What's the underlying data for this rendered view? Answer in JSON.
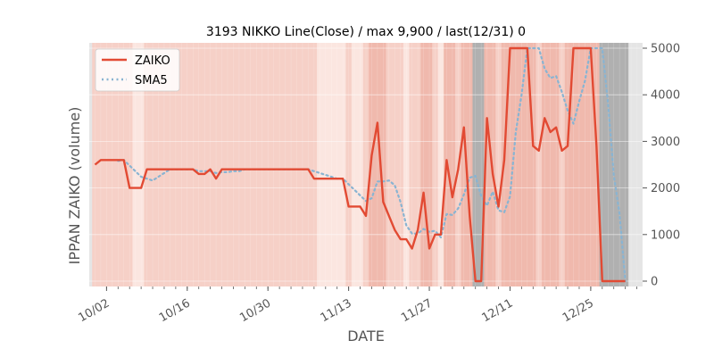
{
  "chart_data": {
    "type": "line",
    "title": "3193 NIKKO Line(Close) / max 9,900 / last(12/31) 0",
    "xlabel": "DATE",
    "ylabel": "IPPAN ZAIKO (volume)",
    "ylim": [
      0,
      5000
    ],
    "x_range": [
      "2023-09-29",
      "2024-01-03"
    ],
    "yticks": [
      0,
      1000,
      2000,
      3000,
      4000,
      5000
    ],
    "ytick_labels": [
      "0",
      "1000",
      "2000",
      "3000",
      "4000",
      "5000"
    ],
    "y_axis_side": "right",
    "xticks": [
      {
        "date": "2023-10-02",
        "label": "10/02"
      },
      {
        "date": "2023-10-16",
        "label": "10/16"
      },
      {
        "date": "2023-10-30",
        "label": "10/30"
      },
      {
        "date": "2023-11-13",
        "label": "11/13"
      },
      {
        "date": "2023-11-27",
        "label": "11/27"
      },
      {
        "date": "2023-12-11",
        "label": "12/11"
      },
      {
        "date": "2023-12-25",
        "label": "12/25"
      }
    ],
    "grid": true,
    "legend_position": "top-left",
    "colors": {
      "zaiko": "#e24a33",
      "sma5": "#89b4d2",
      "background": "#e5e5e5",
      "grid": "#ffffff",
      "shade_light": "#fbe6e0",
      "shade_medium": "#f6d0c7",
      "shade_strong": "#f0b9ad",
      "shade_gray": "#b0b0b0"
    },
    "series": [
      {
        "name": "ZAIKO",
        "style": "solid",
        "x": [
          "2023-09-30",
          "2023-10-01",
          "2023-10-02",
          "2023-10-03",
          "2023-10-04",
          "2023-10-05",
          "2023-10-06",
          "2023-10-07",
          "2023-10-08",
          "2023-10-09",
          "2023-10-10",
          "2023-10-11",
          "2023-10-12",
          "2023-10-13",
          "2023-10-14",
          "2023-10-15",
          "2023-10-16",
          "2023-10-17",
          "2023-10-18",
          "2023-10-19",
          "2023-10-20",
          "2023-10-21",
          "2023-10-22",
          "2023-10-23",
          "2023-10-24",
          "2023-10-25",
          "2023-10-26",
          "2023-10-27",
          "2023-10-28",
          "2023-10-29",
          "2023-10-30",
          "2023-10-31",
          "2023-11-01",
          "2023-11-02",
          "2023-11-03",
          "2023-11-04",
          "2023-11-05",
          "2023-11-06",
          "2023-11-07",
          "2023-11-08",
          "2023-11-09",
          "2023-11-10",
          "2023-11-11",
          "2023-11-12",
          "2023-11-13",
          "2023-11-14",
          "2023-11-15",
          "2023-11-16",
          "2023-11-17",
          "2023-11-18",
          "2023-11-19",
          "2023-11-20",
          "2023-11-21",
          "2023-11-22",
          "2023-11-23",
          "2023-11-24",
          "2023-11-25",
          "2023-11-26",
          "2023-11-27",
          "2023-11-28",
          "2023-11-29",
          "2023-11-30",
          "2023-12-01",
          "2023-12-02",
          "2023-12-03",
          "2023-12-04",
          "2023-12-05",
          "2023-12-06",
          "2023-12-07",
          "2023-12-08",
          "2023-12-09",
          "2023-12-10",
          "2023-12-11",
          "2023-12-12",
          "2023-12-13",
          "2023-12-14",
          "2023-12-15",
          "2023-12-16",
          "2023-12-17",
          "2023-12-18",
          "2023-12-19",
          "2023-12-20",
          "2023-12-21",
          "2023-12-22",
          "2023-12-23",
          "2023-12-24",
          "2023-12-25",
          "2023-12-26",
          "2023-12-27",
          "2023-12-28",
          "2023-12-29",
          "2023-12-30",
          "2023-12-31"
        ],
        "values": [
          2500,
          2600,
          2600,
          2600,
          2600,
          2600,
          2000,
          2000,
          2000,
          2400,
          2400,
          2400,
          2400,
          2400,
          2400,
          2400,
          2400,
          2400,
          2300,
          2300,
          2400,
          2200,
          2400,
          2400,
          2400,
          2400,
          2400,
          2400,
          2400,
          2400,
          2400,
          2400,
          2400,
          2400,
          2400,
          2400,
          2400,
          2400,
          2200,
          2200,
          2200,
          2200,
          2200,
          2200,
          1600,
          1600,
          1600,
          1400,
          2700,
          3400,
          1700,
          1400,
          1100,
          900,
          900,
          700,
          1100,
          1900,
          700,
          1000,
          1000,
          2600,
          1800,
          2400,
          3300,
          1400,
          0,
          0,
          3500,
          2300,
          1600,
          2600,
          5000,
          5000,
          5000,
          5000,
          2900,
          2800,
          3500,
          3200,
          3300,
          2800,
          2900,
          5000,
          5000,
          5000,
          5000,
          2900,
          0,
          0,
          0,
          0,
          0
        ]
      },
      {
        "name": "SMA5",
        "style": "dotted",
        "x": [
          "2023-10-04",
          "2023-10-05",
          "2023-10-06",
          "2023-10-07",
          "2023-10-08",
          "2023-10-09",
          "2023-10-10",
          "2023-10-11",
          "2023-10-12",
          "2023-10-13",
          "2023-10-14",
          "2023-10-15",
          "2023-10-16",
          "2023-10-17",
          "2023-10-18",
          "2023-10-19",
          "2023-10-20",
          "2023-10-21",
          "2023-10-22",
          "2023-10-23",
          "2023-10-24",
          "2023-10-25",
          "2023-10-26",
          "2023-10-27",
          "2023-10-28",
          "2023-10-29",
          "2023-10-30",
          "2023-10-31",
          "2023-11-01",
          "2023-11-02",
          "2023-11-03",
          "2023-11-04",
          "2023-11-05",
          "2023-11-06",
          "2023-11-07",
          "2023-11-08",
          "2023-11-09",
          "2023-11-10",
          "2023-11-11",
          "2023-11-12",
          "2023-11-13",
          "2023-11-14",
          "2023-11-15",
          "2023-11-16",
          "2023-11-17",
          "2023-11-18",
          "2023-11-19",
          "2023-11-20",
          "2023-11-21",
          "2023-11-22",
          "2023-11-23",
          "2023-11-24",
          "2023-11-25",
          "2023-11-26",
          "2023-11-27",
          "2023-11-28",
          "2023-11-29",
          "2023-11-30",
          "2023-12-01",
          "2023-12-02",
          "2023-12-03",
          "2023-12-04",
          "2023-12-05",
          "2023-12-06",
          "2023-12-07",
          "2023-12-08",
          "2023-12-09",
          "2023-12-10",
          "2023-12-11",
          "2023-12-12",
          "2023-12-13",
          "2023-12-14",
          "2023-12-15",
          "2023-12-16",
          "2023-12-17",
          "2023-12-18",
          "2023-12-19",
          "2023-12-20",
          "2023-12-21",
          "2023-12-22",
          "2023-12-23",
          "2023-12-24",
          "2023-12-25",
          "2023-12-26",
          "2023-12-27",
          "2023-12-28",
          "2023-12-29",
          "2023-12-30",
          "2023-12-31"
        ],
        "values": [
          2580,
          2600,
          2480,
          2360,
          2240,
          2200,
          2160,
          2240,
          2320,
          2400,
          2400,
          2400,
          2400,
          2400,
          2360,
          2360,
          2360,
          2320,
          2340,
          2340,
          2360,
          2360,
          2400,
          2400,
          2400,
          2400,
          2400,
          2400,
          2400,
          2400,
          2400,
          2400,
          2400,
          2400,
          2360,
          2320,
          2280,
          2240,
          2200,
          2200,
          2080,
          1960,
          1840,
          1720,
          1780,
          2140,
          2140,
          2160,
          2060,
          1700,
          1200,
          1020,
          1020,
          1120,
          1060,
          1080,
          940,
          1440,
          1420,
          1560,
          1860,
          2220,
          2260,
          1820,
          1620,
          1920,
          1520,
          1480,
          1820,
          3200,
          4000,
          5000,
          5000,
          5000,
          4560,
          4360,
          4400,
          4060,
          3660,
          3380,
          3860,
          4300,
          5000,
          5000,
          5000,
          3820,
          2280,
          1440,
          0
        ]
      }
    ]
  }
}
